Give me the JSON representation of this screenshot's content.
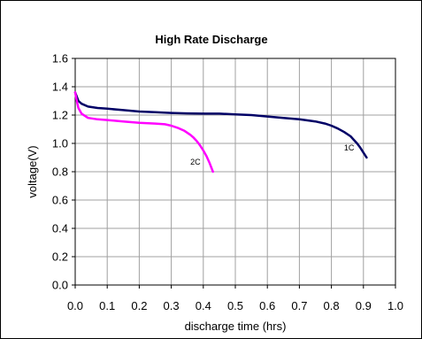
{
  "chart_data": {
    "type": "line",
    "title": "High Rate Discharge",
    "xlabel": "discharge time (hrs)",
    "ylabel": "voltage(V)",
    "xlim": [
      0.0,
      1.0
    ],
    "ylim": [
      0.0,
      1.6
    ],
    "xticks": [
      "0.0",
      "0.1",
      "0.2",
      "0.3",
      "0.4",
      "0.5",
      "0.6",
      "0.7",
      "0.8",
      "0.9",
      "1.0"
    ],
    "yticks": [
      "0.0",
      "0.2",
      "0.4",
      "0.6",
      "0.8",
      "1.0",
      "1.2",
      "1.4",
      "1.6"
    ],
    "grid": true,
    "legend": "none",
    "series": [
      {
        "name": "1C",
        "color": "#000066",
        "x": [
          0.0,
          0.005,
          0.01,
          0.02,
          0.04,
          0.07,
          0.1,
          0.15,
          0.2,
          0.25,
          0.3,
          0.35,
          0.4,
          0.45,
          0.5,
          0.55,
          0.6,
          0.65,
          0.7,
          0.75,
          0.78,
          0.8,
          0.82,
          0.84,
          0.86,
          0.87,
          0.88,
          0.89,
          0.9,
          0.91
        ],
        "y": [
          1.36,
          1.33,
          1.3,
          1.28,
          1.26,
          1.25,
          1.245,
          1.235,
          1.225,
          1.22,
          1.215,
          1.212,
          1.21,
          1.21,
          1.205,
          1.2,
          1.19,
          1.18,
          1.17,
          1.155,
          1.14,
          1.125,
          1.105,
          1.08,
          1.05,
          1.025,
          1.0,
          0.97,
          0.935,
          0.9
        ]
      },
      {
        "name": "2C",
        "color": "#ff00ff",
        "x": [
          0.0,
          0.005,
          0.01,
          0.02,
          0.04,
          0.07,
          0.1,
          0.15,
          0.2,
          0.25,
          0.28,
          0.3,
          0.32,
          0.34,
          0.36,
          0.37,
          0.38,
          0.39,
          0.4,
          0.41,
          0.42,
          0.43
        ],
        "y": [
          1.36,
          1.3,
          1.25,
          1.21,
          1.18,
          1.17,
          1.165,
          1.155,
          1.145,
          1.14,
          1.135,
          1.125,
          1.11,
          1.09,
          1.06,
          1.04,
          1.015,
          0.985,
          0.95,
          0.91,
          0.86,
          0.8
        ]
      }
    ]
  }
}
